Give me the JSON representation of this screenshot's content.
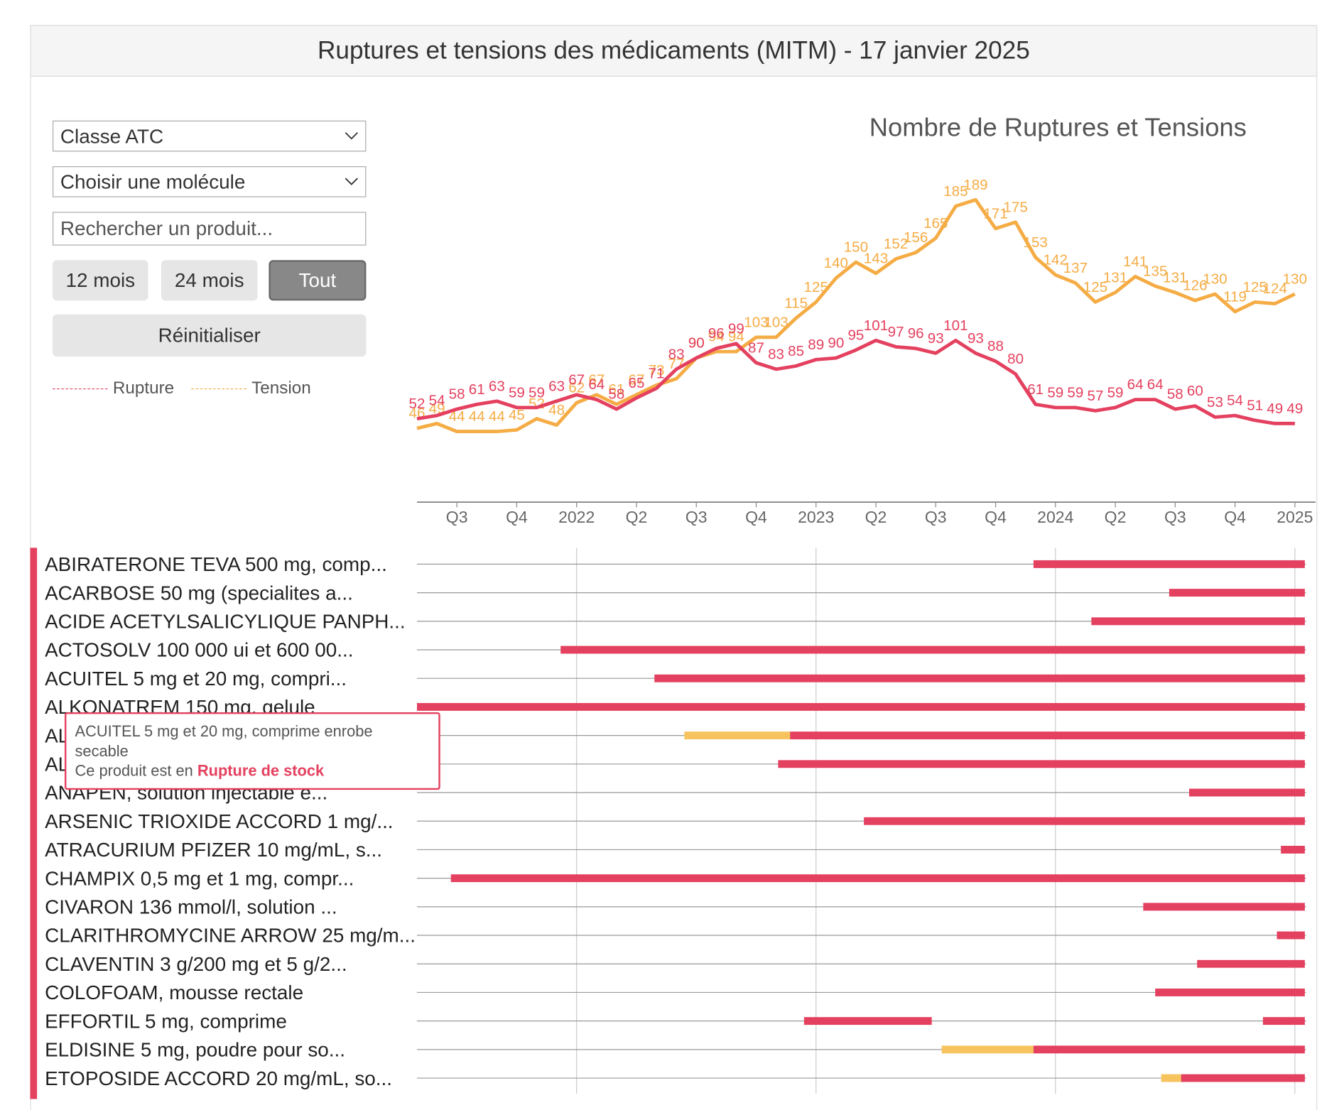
{
  "header": {
    "title": "Ruptures et tensions des médicaments (MITM) - 17 janvier 2025"
  },
  "controls": {
    "atc": "Classe ATC",
    "molecule": "Choisir une molécule",
    "search": "Rechercher un produit...",
    "periods": [
      "12 mois",
      "24 mois",
      "Tout"
    ],
    "active_period": 2,
    "reset": "Réinitialiser"
  },
  "chart_data": {
    "type": "line",
    "title": "Nombre de Ruptures et Tensions",
    "categories": [
      null,
      null,
      "Q3",
      null,
      null,
      "Q4",
      null,
      null,
      "2022",
      null,
      null,
      "Q2",
      null,
      null,
      "Q3",
      null,
      null,
      "Q4",
      null,
      null,
      "2023",
      null,
      null,
      "Q2",
      null,
      null,
      "Q3",
      null,
      null,
      "Q4",
      null,
      null,
      "2024",
      null,
      null,
      "Q2",
      null,
      null,
      "Q3",
      null,
      null,
      "Q4",
      null,
      null,
      "2025"
    ],
    "series": [
      {
        "name": "Rupture",
        "color": "#e4405f",
        "values": [
          52,
          54,
          58,
          61,
          63,
          59,
          59,
          63,
          67,
          64,
          58,
          65,
          71,
          83,
          90,
          96,
          99,
          87,
          83,
          85,
          89,
          90,
          95,
          101,
          97,
          96,
          93,
          101,
          93,
          88,
          80,
          61,
          59,
          59,
          57,
          59,
          64,
          64,
          58,
          60,
          53,
          54,
          51,
          49,
          49
        ]
      },
      {
        "name": "Tension",
        "color": "#f5ac45",
        "values": [
          46,
          49,
          44,
          44,
          44,
          45,
          52,
          48,
          62,
          67,
          61,
          67,
          73,
          77,
          90,
          94,
          94,
          103,
          103,
          115,
          125,
          140,
          150,
          143,
          152,
          156,
          165,
          185,
          189,
          171,
          175,
          153,
          142,
          137,
          125,
          131,
          141,
          135,
          131,
          126,
          130,
          119,
          125,
          124,
          130
        ]
      }
    ]
  },
  "gantt": {
    "xlim": [
      0,
      44
    ],
    "grid_x": [
      8,
      20,
      32,
      44
    ],
    "rows": [
      {
        "label": "ABIRATERONE TEVA 500 mg, comp...",
        "bars": [
          {
            "start": 30.9,
            "end": 44.5,
            "color": "#e4405f"
          }
        ]
      },
      {
        "label": "ACARBOSE 50 mg (specialites a...",
        "bars": [
          {
            "start": 37.7,
            "end": 44.5,
            "color": "#e4405f"
          }
        ]
      },
      {
        "label": "ACIDE ACETYLSALICYLIQUE PANPH...",
        "bars": [
          {
            "start": 33.8,
            "end": 44.5,
            "color": "#e4405f"
          }
        ]
      },
      {
        "label": "ACTOSOLV 100 000 ui et 600 00...",
        "bars": [
          {
            "start": 7.2,
            "end": 44.5,
            "color": "#e4405f"
          }
        ]
      },
      {
        "label": "ACUITEL 5 mg et 20 mg, compri...",
        "bars": [
          {
            "start": 11.9,
            "end": 44.5,
            "color": "#e4405f"
          }
        ]
      },
      {
        "label": "ALKONATREM 150 mg, gelule",
        "bars": [
          {
            "start": 0,
            "end": 44.5,
            "color": "#e4405f"
          }
        ]
      },
      {
        "label": "AL",
        "bars": [
          {
            "start": 13.4,
            "end": 18.7,
            "color": "#f7c35f"
          },
          {
            "start": 18.7,
            "end": 44.5,
            "color": "#e4405f"
          }
        ]
      },
      {
        "label": "AL",
        "bars": [
          {
            "start": 18.1,
            "end": 44.5,
            "color": "#e4405f"
          }
        ]
      },
      {
        "label": "ANAPEN, solution injectable e...",
        "bars": [
          {
            "start": 38.7,
            "end": 44.5,
            "color": "#e4405f"
          }
        ]
      },
      {
        "label": "ARSENIC TRIOXIDE ACCORD 1 mg/...",
        "bars": [
          {
            "start": 22.4,
            "end": 44.5,
            "color": "#e4405f"
          }
        ]
      },
      {
        "label": "ATRACURIUM PFIZER 10 mg/mL, s...",
        "bars": [
          {
            "start": 43.3,
            "end": 44.5,
            "color": "#e4405f"
          }
        ]
      },
      {
        "label": "CHAMPIX 0,5 mg et 1 mg, compr...",
        "bars": [
          {
            "start": 1.7,
            "end": 44.5,
            "color": "#e4405f"
          }
        ]
      },
      {
        "label": "CIVARON 136 mmol/l, solution ...",
        "bars": [
          {
            "start": 36.4,
            "end": 44.5,
            "color": "#e4405f"
          }
        ]
      },
      {
        "label": "CLARITHROMYCINE ARROW 25 mg/m...",
        "bars": [
          {
            "start": 43.1,
            "end": 44.5,
            "color": "#e4405f"
          }
        ]
      },
      {
        "label": "CLAVENTIN 3 g/200 mg et 5 g/2...",
        "bars": [
          {
            "start": 39.1,
            "end": 44.5,
            "color": "#e4405f"
          }
        ]
      },
      {
        "label": "COLOFOAM, mousse rectale",
        "bars": [
          {
            "start": 37.0,
            "end": 44.5,
            "color": "#e4405f"
          }
        ]
      },
      {
        "label": "EFFORTIL 5 mg, comprime",
        "bars": [
          {
            "start": 19.4,
            "end": 25.8,
            "color": "#e4405f"
          },
          {
            "start": 42.4,
            "end": 44.5,
            "color": "#e4405f"
          }
        ]
      },
      {
        "label": "ELDISINE 5 mg, poudre pour so...",
        "bars": [
          {
            "start": 26.3,
            "end": 30.9,
            "color": "#f7c35f"
          },
          {
            "start": 30.9,
            "end": 44.5,
            "color": "#e4405f"
          }
        ]
      },
      {
        "label": "ETOPOSIDE ACCORD 20 mg/mL, so...",
        "bars": [
          {
            "start": 37.3,
            "end": 38.3,
            "color": "#f7c35f"
          },
          {
            "start": 38.3,
            "end": 44.5,
            "color": "#e4405f"
          }
        ]
      }
    ]
  },
  "tooltip": {
    "product": "ACUITEL 5 mg et 20 mg, comprime enrobe secable",
    "text": "Ce produit est en",
    "status": "Rupture de stock"
  }
}
